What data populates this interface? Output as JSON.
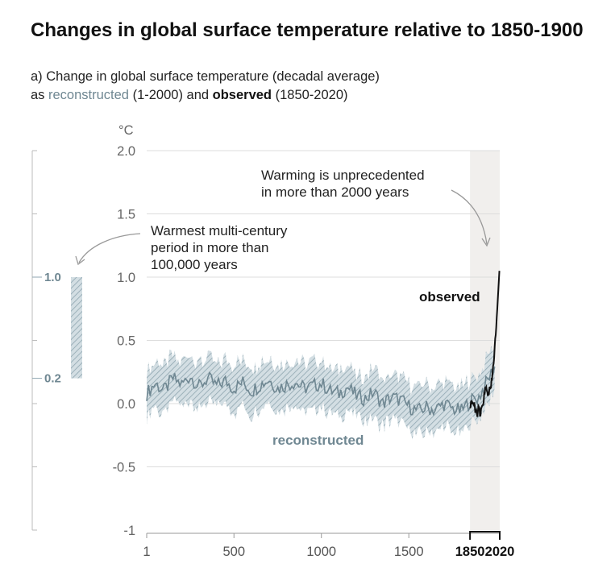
{
  "header": {
    "title": "Changes in global surface temperature relative to 1850-1900",
    "subtitle_line1": "a) Change in global surface temperature (decadal average)",
    "subtitle_as": "as ",
    "subtitle_reconstructed": "reconstructed",
    "subtitle_mid": " (1-2000) and ",
    "subtitle_observed": "observed",
    "subtitle_end": " (1850-2020)"
  },
  "chart_data": {
    "type": "line",
    "ylabel": "°C",
    "ylim": [
      -1,
      2
    ],
    "xlim": [
      1,
      2020
    ],
    "y_ticks": [
      {
        "v": 2.0,
        "label": "2.0"
      },
      {
        "v": 1.5,
        "label": "1.5"
      },
      {
        "v": 1.0,
        "label": "1.0"
      },
      {
        "v": 0.5,
        "label": "0.5"
      },
      {
        "v": 0.0,
        "label": "0.0"
      },
      {
        "v": -0.5,
        "label": "-0.5"
      },
      {
        "v": -1,
        "label": "-1"
      }
    ],
    "x_ticks": [
      {
        "v": 1,
        "label": "1",
        "bold": false
      },
      {
        "v": 500,
        "label": "500",
        "bold": false
      },
      {
        "v": 1000,
        "label": "1000",
        "bold": false
      },
      {
        "v": 1500,
        "label": "1500",
        "bold": false
      },
      {
        "v": 1850,
        "label": "1850",
        "bold": true
      },
      {
        "v": 2020,
        "label": "2020",
        "bold": true
      }
    ],
    "shaded_period": [
      1850,
      2020
    ],
    "series": [
      {
        "name": "reconstructed",
        "color": "#6f8792",
        "band_color": "#c9d6dc",
        "band_halfwidth": 0.18,
        "x": [
          1,
          50,
          100,
          150,
          200,
          250,
          300,
          350,
          400,
          450,
          500,
          550,
          600,
          650,
          700,
          750,
          800,
          850,
          900,
          950,
          1000,
          1050,
          1100,
          1150,
          1200,
          1250,
          1300,
          1350,
          1400,
          1450,
          1500,
          1550,
          1600,
          1650,
          1700,
          1750,
          1800,
          1850,
          1900,
          1950,
          2000
        ],
        "values": [
          0.08,
          0.16,
          0.1,
          0.2,
          0.15,
          0.22,
          0.13,
          0.2,
          0.14,
          0.18,
          0.12,
          0.17,
          0.1,
          0.15,
          0.19,
          0.12,
          0.15,
          0.17,
          0.12,
          0.14,
          0.16,
          0.1,
          0.08,
          0.13,
          0.06,
          0.04,
          0.09,
          0.0,
          0.05,
          0.03,
          -0.02,
          -0.06,
          -0.03,
          -0.05,
          0.0,
          -0.04,
          -0.06,
          0.02,
          0.05,
          0.18,
          0.32
        ]
      },
      {
        "name": "observed",
        "color": "#111111",
        "x": [
          1850,
          1860,
          1870,
          1880,
          1890,
          1900,
          1910,
          1920,
          1930,
          1940,
          1950,
          1960,
          1970,
          1980,
          1990,
          2000,
          2010,
          2020
        ],
        "values": [
          -0.02,
          0.02,
          0.0,
          -0.06,
          -0.08,
          -0.04,
          -0.1,
          -0.02,
          0.05,
          0.12,
          0.08,
          0.1,
          0.12,
          0.25,
          0.42,
          0.6,
          0.85,
          1.1
        ]
      }
    ],
    "annotations": {
      "observed_label": "observed",
      "reconstructed_label": "reconstructed",
      "unprecedented_line1": "Warming is unprecedented",
      "unprecedented_line2": "in more than 2000 years",
      "warmest_line1": "Warmest multi-century",
      "warmest_line2": "period in more than",
      "warmest_line3": "100,000 years"
    },
    "side_bar": {
      "low": 0.2,
      "high": 1.0,
      "low_label": "0.2",
      "high_label": "1.0"
    }
  }
}
